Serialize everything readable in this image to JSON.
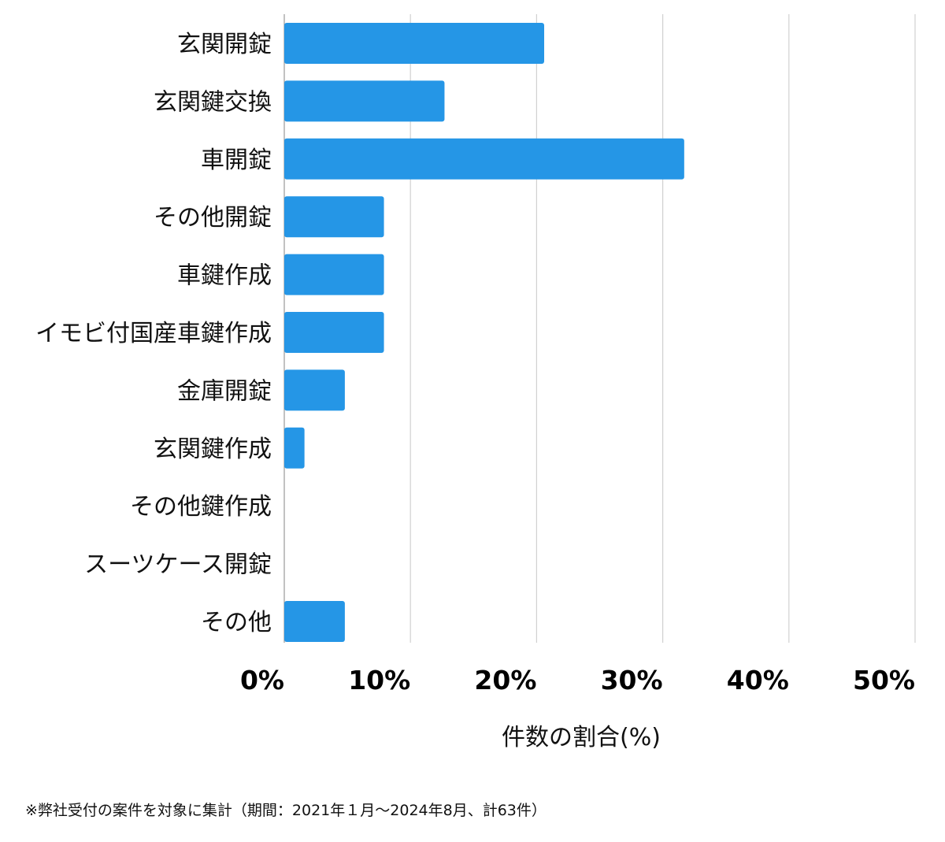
{
  "chart_data": {
    "type": "bar",
    "orientation": "horizontal",
    "categories": [
      "玄関開錠",
      "玄関鍵交換",
      "車開錠",
      "その他開錠",
      "車鍵作成",
      "イモビ付国産車鍵作成",
      "金庫開錠",
      "玄関鍵作成",
      "その他鍵作成",
      "スーツケース開錠",
      "その他"
    ],
    "values": [
      20.6,
      12.7,
      31.7,
      7.9,
      7.9,
      7.9,
      4.8,
      1.6,
      0,
      0,
      4.8
    ],
    "xlim": [
      0,
      50
    ],
    "ticks": [
      0,
      10,
      20,
      30,
      40,
      50
    ],
    "tick_labels": [
      "0%",
      "10%",
      "20%",
      "30%",
      "40%",
      "50%"
    ],
    "xlabel": "件数の割合(%)",
    "title": "",
    "grid": true,
    "bar_color": "#2596e6",
    "grid_color": "#d0d0d0"
  },
  "footnote": "※弊社受付の案件を対象に集計（期間：2021年１月〜2024年8月、計63件）"
}
